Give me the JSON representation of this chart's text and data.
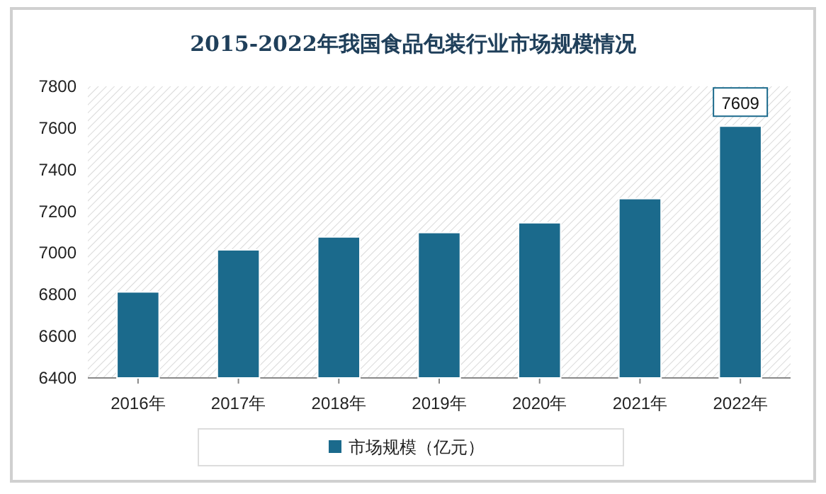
{
  "chart_data": {
    "type": "bar",
    "title": "2015-2022年我国食品包装行业市场规模情况",
    "categories": [
      "2016年",
      "2017年",
      "2018年",
      "2019年",
      "2020年",
      "2021年",
      "2022年"
    ],
    "series": [
      {
        "name": "市场规模（亿元）",
        "color": "#1b6a8c",
        "values": [
          6813,
          7015,
          7077,
          7098,
          7145,
          7261,
          7609
        ],
        "value_labels": [
          null,
          null,
          null,
          null,
          null,
          null,
          "7609"
        ]
      }
    ],
    "ylim": [
      6400,
      7800
    ],
    "yticks": [
      6400,
      6600,
      6800,
      7000,
      7200,
      7400,
      7600,
      7800
    ],
    "grid": false,
    "legend": "bottom"
  }
}
